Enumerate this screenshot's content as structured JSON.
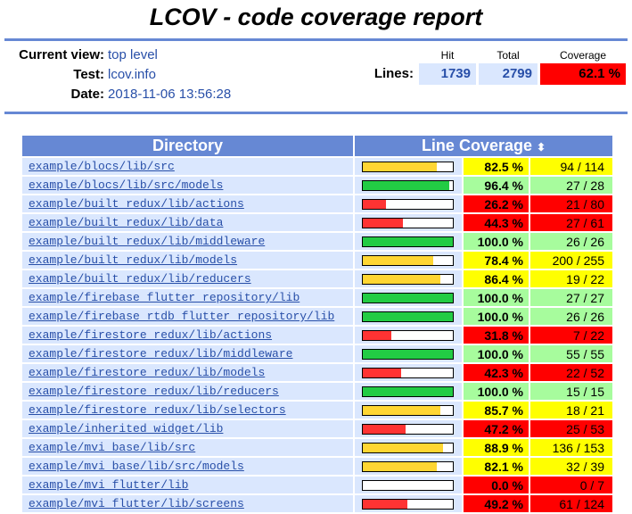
{
  "title": "LCOV - code coverage report",
  "header": {
    "current_view_label": "Current view:",
    "current_view_value": "top level",
    "test_label": "Test:",
    "test_value": "lcov.info",
    "date_label": "Date:",
    "date_value": "2018-11-06 13:56:28",
    "lines_label": "Lines:",
    "col_hit": "Hit",
    "col_total": "Total",
    "col_coverage": "Coverage",
    "hit": "1739",
    "total": "2799",
    "coverage": "62.1 %"
  },
  "colors": {
    "high": "#22cc44",
    "medium": "#ffd633",
    "low": "#ff3333",
    "pct_high": "#a7fc9d",
    "pct_medium": "#ffff00",
    "pct_low": "#ff0000",
    "header_blue": "#6688d4",
    "row_blue": "#dae7fe"
  },
  "table": {
    "col_directory": "Directory",
    "col_line_coverage": "Line Coverage",
    "sort_icon": "sort-updown-icon",
    "rows": [
      {
        "dir": "example/blocs/lib/src",
        "ratio": 0.825,
        "level": "medium",
        "pct": "82.5 %",
        "count": "94 / 114"
      },
      {
        "dir": "example/blocs/lib/src/models",
        "ratio": 0.964,
        "level": "high",
        "pct": "96.4 %",
        "count": "27 / 28"
      },
      {
        "dir": "example/built_redux/lib/actions",
        "ratio": 0.262,
        "level": "low",
        "pct": "26.2 %",
        "count": "21 / 80"
      },
      {
        "dir": "example/built_redux/lib/data",
        "ratio": 0.443,
        "level": "low",
        "pct": "44.3 %",
        "count": "27 / 61"
      },
      {
        "dir": "example/built_redux/lib/middleware",
        "ratio": 1.0,
        "level": "high",
        "pct": "100.0 %",
        "count": "26 / 26"
      },
      {
        "dir": "example/built_redux/lib/models",
        "ratio": 0.784,
        "level": "medium",
        "pct": "78.4 %",
        "count": "200 / 255"
      },
      {
        "dir": "example/built_redux/lib/reducers",
        "ratio": 0.864,
        "level": "medium",
        "pct": "86.4 %",
        "count": "19 / 22"
      },
      {
        "dir": "example/firebase_flutter_repository/lib",
        "ratio": 1.0,
        "level": "high",
        "pct": "100.0 %",
        "count": "27 / 27"
      },
      {
        "dir": "example/firebase_rtdb_flutter_repository/lib",
        "ratio": 1.0,
        "level": "high",
        "pct": "100.0 %",
        "count": "26 / 26"
      },
      {
        "dir": "example/firestore_redux/lib/actions",
        "ratio": 0.318,
        "level": "low",
        "pct": "31.8 %",
        "count": "7 / 22"
      },
      {
        "dir": "example/firestore_redux/lib/middleware",
        "ratio": 1.0,
        "level": "high",
        "pct": "100.0 %",
        "count": "55 / 55"
      },
      {
        "dir": "example/firestore_redux/lib/models",
        "ratio": 0.423,
        "level": "low",
        "pct": "42.3 %",
        "count": "22 / 52"
      },
      {
        "dir": "example/firestore_redux/lib/reducers",
        "ratio": 1.0,
        "level": "high",
        "pct": "100.0 %",
        "count": "15 / 15"
      },
      {
        "dir": "example/firestore_redux/lib/selectors",
        "ratio": 0.857,
        "level": "medium",
        "pct": "85.7 %",
        "count": "18 / 21"
      },
      {
        "dir": "example/inherited_widget/lib",
        "ratio": 0.472,
        "level": "low",
        "pct": "47.2 %",
        "count": "25 / 53"
      },
      {
        "dir": "example/mvi_base/lib/src",
        "ratio": 0.889,
        "level": "medium",
        "pct": "88.9 %",
        "count": "136 / 153"
      },
      {
        "dir": "example/mvi_base/lib/src/models",
        "ratio": 0.821,
        "level": "medium",
        "pct": "82.1 %",
        "count": "32 / 39"
      },
      {
        "dir": "example/mvi_flutter/lib",
        "ratio": 0.0,
        "level": "low",
        "pct": "0.0 %",
        "count": "0 / 7"
      },
      {
        "dir": "example/mvi_flutter/lib/screens",
        "ratio": 0.492,
        "level": "low",
        "pct": "49.2 %",
        "count": "61 / 124"
      }
    ]
  }
}
